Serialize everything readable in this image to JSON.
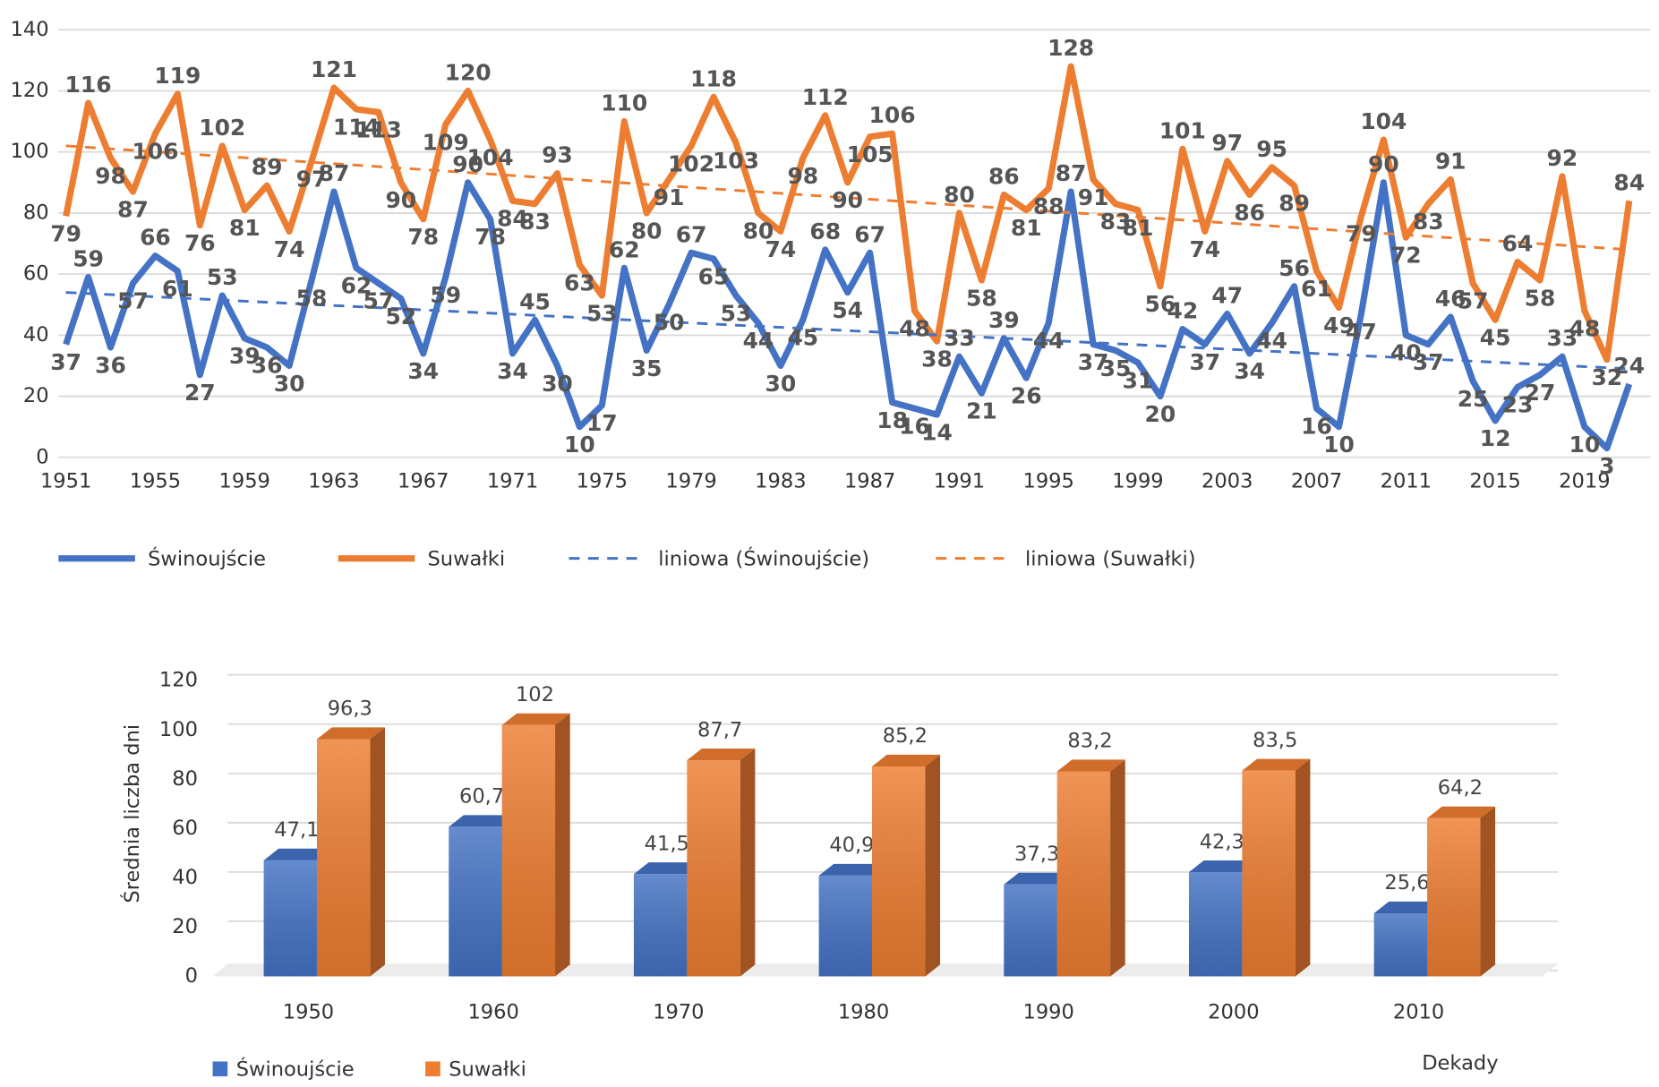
{
  "chart_data": [
    {
      "type": "line",
      "x": [
        1951,
        1952,
        1953,
        1954,
        1955,
        1956,
        1957,
        1958,
        1959,
        1960,
        1961,
        1962,
        1963,
        1964,
        1965,
        1966,
        1967,
        1968,
        1969,
        1970,
        1971,
        1972,
        1973,
        1974,
        1975,
        1976,
        1977,
        1978,
        1979,
        1980,
        1981,
        1982,
        1983,
        1984,
        1985,
        1986,
        1987,
        1988,
        1989,
        1990,
        1991,
        1992,
        1993,
        1994,
        1995,
        1996,
        1997,
        1998,
        1999,
        2000,
        2001,
        2002,
        2003,
        2004,
        2005,
        2006,
        2007,
        2008,
        2009,
        2010,
        2011,
        2012,
        2013,
        2014,
        2015,
        2016,
        2017,
        2018,
        2019,
        2020,
        2021
      ],
      "xlim": [
        1951,
        2021
      ],
      "xticks": [
        1951,
        1955,
        1959,
        1963,
        1967,
        1971,
        1975,
        1979,
        1983,
        1987,
        1991,
        1995,
        1999,
        2003,
        2007,
        2011,
        2015,
        2019
      ],
      "ylim": [
        0,
        140
      ],
      "yticks": [
        0,
        20,
        40,
        60,
        80,
        100,
        120,
        140
      ],
      "grid": true,
      "legend": "bottom",
      "series": [
        {
          "name": "Świnoujście",
          "color": "#4472c4",
          "values": [
            37,
            59,
            36,
            57,
            66,
            61,
            27,
            53,
            39,
            36,
            30,
            58,
            87,
            62,
            57,
            52,
            34,
            59,
            90,
            78,
            34,
            45,
            30,
            10,
            17,
            62,
            35,
            50,
            67,
            65,
            53,
            44,
            30,
            45,
            68,
            54,
            67,
            18,
            16,
            14,
            33,
            21,
            39,
            26,
            44,
            87,
            37,
            35,
            31,
            20,
            42,
            37,
            47,
            34,
            44,
            56,
            16,
            10,
            47,
            90,
            40,
            37,
            46,
            25,
            12,
            23,
            27,
            33,
            10,
            3,
            24
          ]
        },
        {
          "name": "Suwałki",
          "color": "#ed7d31",
          "values": [
            79,
            116,
            98,
            87,
            106,
            119,
            76,
            102,
            81,
            89,
            74,
            97,
            121,
            114,
            113,
            90,
            78,
            109,
            120,
            104,
            84,
            83,
            93,
            63,
            53,
            110,
            80,
            91,
            102,
            118,
            103,
            80,
            74,
            98,
            112,
            90,
            105,
            106,
            48,
            38,
            80,
            58,
            86,
            81,
            88,
            128,
            91,
            83,
            81,
            56,
            101,
            74,
            97,
            86,
            95,
            89,
            61,
            49,
            79,
            104,
            72,
            83,
            91,
            57,
            45,
            64,
            58,
            92,
            48,
            32,
            84
          ]
        },
        {
          "name": "liniowa (Świnoujście)",
          "color": "#4472c4",
          "dashed": true,
          "x": [
            1951,
            2021
          ],
          "values": [
            54,
            29
          ]
        },
        {
          "name": "liniowa (Suwałki)",
          "color": "#ed7d31",
          "dashed": true,
          "x": [
            1951,
            2021
          ],
          "values": [
            102,
            68
          ]
        }
      ]
    },
    {
      "type": "bar",
      "categories": [
        "1950",
        "1960",
        "1970",
        "1980",
        "1990",
        "2000",
        "2010"
      ],
      "ylabel": "Średnia liczba dni",
      "xlabel": "Dekady",
      "ylim": [
        0,
        120
      ],
      "yticks": [
        0,
        20,
        40,
        60,
        80,
        100,
        120
      ],
      "grid": true,
      "legend": "bottom-left",
      "series": [
        {
          "name": "Świnoujście",
          "color": "#4472c4",
          "values": [
            47.1,
            60.7,
            41.5,
            40.9,
            37.3,
            42.3,
            25.6
          ],
          "value_labels": [
            "47,1",
            "60,7",
            "41,5",
            "40,9",
            "37,3",
            "42,3",
            "25,6"
          ]
        },
        {
          "name": "Suwałki",
          "color": "#ed7d31",
          "values": [
            96.3,
            102,
            87.7,
            85.2,
            83.2,
            83.5,
            64.2
          ],
          "value_labels": [
            "96,3",
            "102",
            "87,7",
            "85,2",
            "83,2",
            "83,5",
            "64,2"
          ]
        }
      ]
    }
  ]
}
